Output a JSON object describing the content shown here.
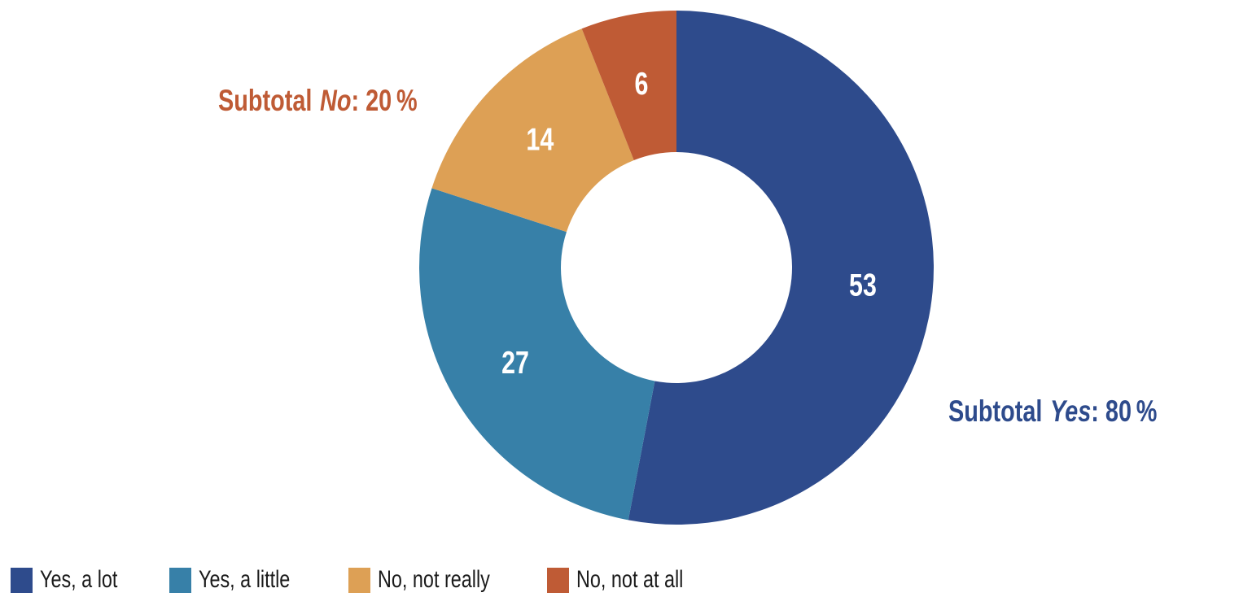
{
  "background_color": "#ffffff",
  "chart_data": {
    "type": "pie",
    "subtype": "donut",
    "start_angle": "top",
    "direction": "clockwise",
    "donut_hole_ratio": 0.45,
    "slices": [
      {
        "label": "Yes, a lot",
        "value": 53,
        "color": "#2e4b8c"
      },
      {
        "label": "Yes, a little",
        "value": 27,
        "color": "#3780a8"
      },
      {
        "label": "No, not really",
        "value": 14,
        "color": "#dda055"
      },
      {
        "label": "No, not at all",
        "value": 6,
        "color": "#bf5b35"
      }
    ],
    "value_labels": {
      "shown": true,
      "placement": "inside-slices",
      "color": "#ffffff"
    },
    "annotations": [
      {
        "id": "subtotal-no",
        "prefix": "Subtotal",
        "italic": "No",
        "suffix": ": 20 %",
        "color": "#bf5b35",
        "position": "upper-left"
      },
      {
        "id": "subtotal-yes",
        "prefix": "Subtotal",
        "italic": "Yes",
        "suffix": ": 80 %",
        "color": "#2e4b8c",
        "position": "right"
      }
    ],
    "legend": {
      "position": "bottom",
      "text_color": "#1a1a1a"
    }
  }
}
